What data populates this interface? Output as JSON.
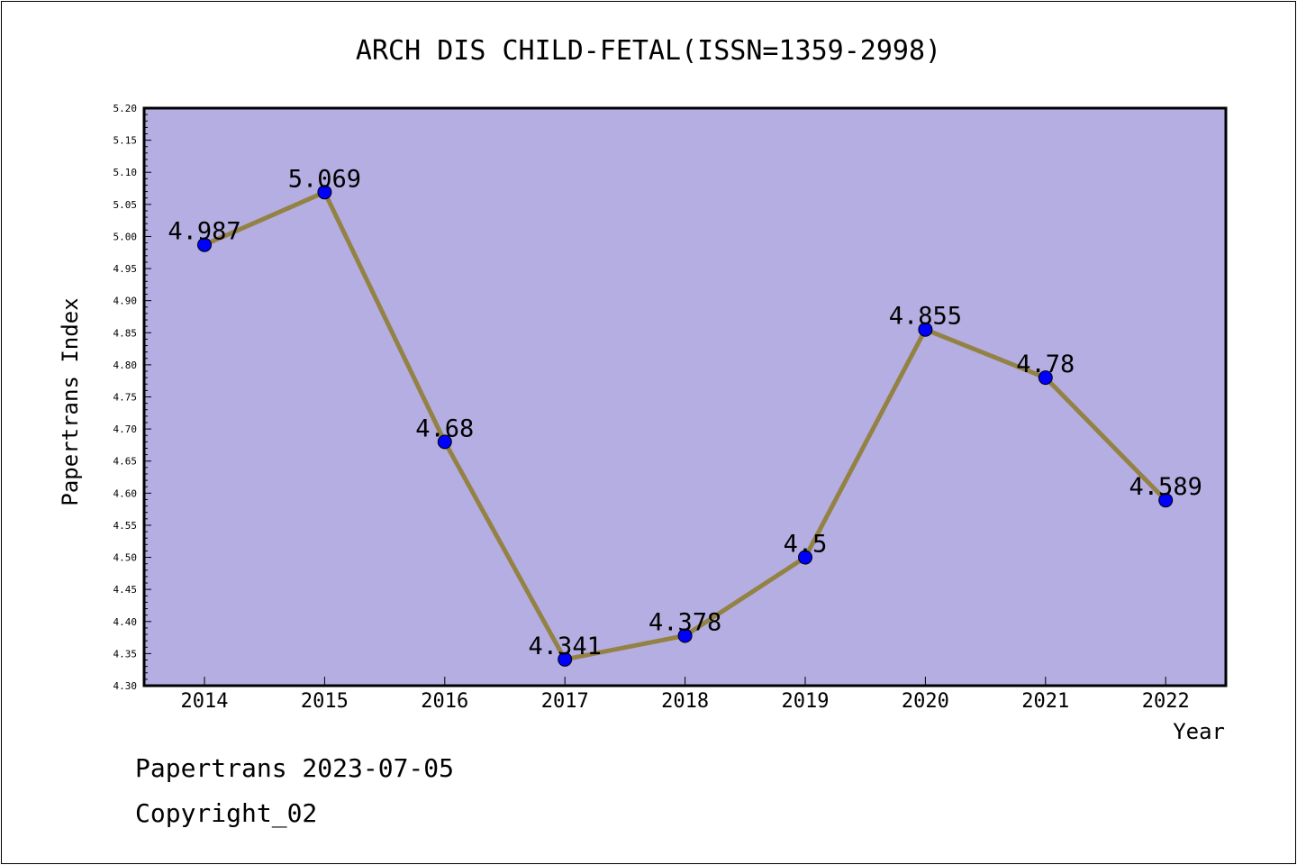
{
  "chart_data": {
    "type": "line",
    "title": "ARCH DIS CHILD-FETAL(ISSN=1359-2998)",
    "xlabel": "Year",
    "ylabel": "Papertrans Index",
    "categories": [
      "2014",
      "2015",
      "2016",
      "2017",
      "2018",
      "2019",
      "2020",
      "2021",
      "2022"
    ],
    "values": [
      4.987,
      5.069,
      4.68,
      4.341,
      4.378,
      4.5,
      4.855,
      4.78,
      4.589
    ],
    "data_labels": [
      "4.987",
      "5.069",
      "4.68",
      "4.341",
      "4.378",
      "4.5",
      "4.855",
      "4.78",
      "4.589"
    ],
    "ylim": [
      4.3,
      5.2
    ],
    "yticks": [
      "4.30",
      "4.35",
      "4.40",
      "4.45",
      "4.50",
      "4.55",
      "4.60",
      "4.65",
      "4.70",
      "4.75",
      "4.80",
      "4.85",
      "4.90",
      "4.95",
      "5.00",
      "5.05",
      "5.10",
      "5.15",
      "5.20"
    ],
    "grid": false,
    "colors": {
      "plot_background": "#b4aee2",
      "line": "#938244",
      "marker": "#0000ff"
    }
  },
  "footer": {
    "line1": "Papertrans 2023-07-05",
    "line2": "Copyright_02"
  }
}
